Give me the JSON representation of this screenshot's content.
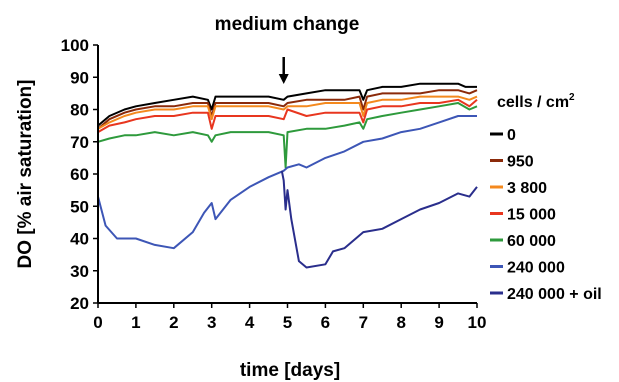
{
  "chart_data": {
    "type": "line",
    "annotation": "medium change",
    "annotation_x": 4.9,
    "xlabel": "time [days]",
    "ylabel": "DO [% air saturation]",
    "xlim": [
      0,
      10
    ],
    "ylim": [
      20,
      100
    ],
    "x_ticks": [
      0,
      1,
      2,
      3,
      4,
      5,
      6,
      7,
      8,
      9,
      10
    ],
    "y_ticks": [
      20,
      30,
      40,
      50,
      60,
      70,
      80,
      90,
      100
    ],
    "legend": {
      "title": "cells / cm",
      "title_sup": "2",
      "placement": "right"
    },
    "series": [
      {
        "name": "0",
        "color": "#000000",
        "points": [
          [
            0,
            75
          ],
          [
            0.3,
            78
          ],
          [
            0.7,
            80
          ],
          [
            1,
            81
          ],
          [
            1.5,
            82
          ],
          [
            2,
            83
          ],
          [
            2.5,
            84
          ],
          [
            2.9,
            83
          ],
          [
            3.0,
            80
          ],
          [
            3.1,
            84
          ],
          [
            3.5,
            84
          ],
          [
            4,
            84
          ],
          [
            4.5,
            84
          ],
          [
            4.9,
            83
          ],
          [
            5.0,
            84
          ],
          [
            5.5,
            85
          ],
          [
            6,
            86
          ],
          [
            6.5,
            86
          ],
          [
            6.9,
            86
          ],
          [
            7.0,
            83
          ],
          [
            7.1,
            86
          ],
          [
            7.5,
            87
          ],
          [
            8,
            87
          ],
          [
            8.5,
            88
          ],
          [
            9,
            88
          ],
          [
            9.5,
            88
          ],
          [
            9.7,
            87
          ],
          [
            10,
            87
          ]
        ]
      },
      {
        "name": "950",
        "color": "#8b2a0a",
        "points": [
          [
            0,
            74
          ],
          [
            0.3,
            77
          ],
          [
            0.7,
            79
          ],
          [
            1,
            80
          ],
          [
            1.5,
            81
          ],
          [
            2,
            81
          ],
          [
            2.5,
            82
          ],
          [
            2.9,
            82
          ],
          [
            3.0,
            78
          ],
          [
            3.1,
            82
          ],
          [
            3.5,
            82
          ],
          [
            4,
            82
          ],
          [
            4.5,
            82
          ],
          [
            4.9,
            81
          ],
          [
            5.0,
            82
          ],
          [
            5.5,
            83
          ],
          [
            6,
            83
          ],
          [
            6.5,
            83
          ],
          [
            6.9,
            84
          ],
          [
            7.0,
            80
          ],
          [
            7.1,
            84
          ],
          [
            7.5,
            85
          ],
          [
            8,
            85
          ],
          [
            8.5,
            85
          ],
          [
            9,
            86
          ],
          [
            9.5,
            86
          ],
          [
            9.8,
            85
          ],
          [
            10,
            86
          ]
        ]
      },
      {
        "name": "3 800",
        "color": "#f4891e",
        "points": [
          [
            0,
            74
          ],
          [
            0.3,
            76
          ],
          [
            0.7,
            78
          ],
          [
            1,
            79
          ],
          [
            1.5,
            80
          ],
          [
            2,
            80
          ],
          [
            2.5,
            81
          ],
          [
            2.9,
            81
          ],
          [
            3.0,
            77
          ],
          [
            3.1,
            81
          ],
          [
            3.5,
            81
          ],
          [
            4,
            81
          ],
          [
            4.5,
            81
          ],
          [
            4.9,
            80
          ],
          [
            5.0,
            81
          ],
          [
            5.5,
            81
          ],
          [
            6,
            82
          ],
          [
            6.5,
            82
          ],
          [
            6.9,
            82
          ],
          [
            7.0,
            78
          ],
          [
            7.1,
            82
          ],
          [
            7.5,
            83
          ],
          [
            8,
            83
          ],
          [
            8.5,
            84
          ],
          [
            9,
            84
          ],
          [
            9.5,
            84
          ],
          [
            9.8,
            83
          ],
          [
            10,
            84
          ]
        ]
      },
      {
        "name": "15 000",
        "color": "#e8361f",
        "points": [
          [
            0,
            73
          ],
          [
            0.3,
            75
          ],
          [
            0.7,
            76
          ],
          [
            1,
            77
          ],
          [
            1.5,
            78
          ],
          [
            2,
            78
          ],
          [
            2.5,
            79
          ],
          [
            2.9,
            79
          ],
          [
            3.0,
            74
          ],
          [
            3.1,
            78
          ],
          [
            3.5,
            78
          ],
          [
            4,
            78
          ],
          [
            4.5,
            78
          ],
          [
            4.9,
            77
          ],
          [
            5.0,
            80
          ],
          [
            5.5,
            78
          ],
          [
            6,
            79
          ],
          [
            6.5,
            79
          ],
          [
            6.9,
            79
          ],
          [
            7.0,
            76
          ],
          [
            7.1,
            80
          ],
          [
            7.5,
            81
          ],
          [
            8,
            81
          ],
          [
            8.5,
            82
          ],
          [
            9,
            82
          ],
          [
            9.5,
            83
          ],
          [
            9.8,
            81
          ],
          [
            10,
            83
          ]
        ]
      },
      {
        "name": "60 000",
        "color": "#2e9a3c",
        "points": [
          [
            0,
            70
          ],
          [
            0.3,
            71
          ],
          [
            0.7,
            72
          ],
          [
            1,
            72
          ],
          [
            1.5,
            73
          ],
          [
            2,
            72
          ],
          [
            2.5,
            73
          ],
          [
            2.9,
            72
          ],
          [
            3.0,
            70
          ],
          [
            3.1,
            72
          ],
          [
            3.5,
            73
          ],
          [
            4,
            73
          ],
          [
            4.5,
            73
          ],
          [
            4.9,
            72
          ],
          [
            4.95,
            62
          ],
          [
            5.0,
            73
          ],
          [
            5.5,
            74
          ],
          [
            6,
            74
          ],
          [
            6.5,
            75
          ],
          [
            6.9,
            76
          ],
          [
            7.0,
            74
          ],
          [
            7.1,
            77
          ],
          [
            7.5,
            78
          ],
          [
            8,
            79
          ],
          [
            8.5,
            80
          ],
          [
            9,
            81
          ],
          [
            9.5,
            82
          ],
          [
            9.8,
            80
          ],
          [
            10,
            81
          ]
        ]
      },
      {
        "name": "240 000",
        "color": "#3d56b6",
        "points": [
          [
            0,
            53
          ],
          [
            0.2,
            44
          ],
          [
            0.5,
            40
          ],
          [
            1,
            40
          ],
          [
            1.5,
            38
          ],
          [
            2,
            37
          ],
          [
            2.5,
            42
          ],
          [
            2.8,
            48
          ],
          [
            3.0,
            51
          ],
          [
            3.1,
            46
          ],
          [
            3.5,
            52
          ],
          [
            4,
            56
          ],
          [
            4.5,
            59
          ],
          [
            4.9,
            61
          ],
          [
            5.0,
            62
          ],
          [
            5.3,
            63
          ],
          [
            5.5,
            62
          ],
          [
            6,
            65
          ],
          [
            6.5,
            67
          ],
          [
            7,
            70
          ],
          [
            7.5,
            71
          ],
          [
            8,
            73
          ],
          [
            8.5,
            74
          ],
          [
            9,
            76
          ],
          [
            9.5,
            78
          ],
          [
            10,
            78
          ]
        ]
      },
      {
        "name": "240 000 + oil",
        "color": "#2a2e8c",
        "points": [
          [
            4.85,
            61
          ],
          [
            4.9,
            58
          ],
          [
            4.95,
            49
          ],
          [
            5.0,
            55
          ],
          [
            5.1,
            46
          ],
          [
            5.3,
            33
          ],
          [
            5.5,
            31
          ],
          [
            6,
            32
          ],
          [
            6.2,
            36
          ],
          [
            6.5,
            37
          ],
          [
            7,
            42
          ],
          [
            7.5,
            43
          ],
          [
            8,
            46
          ],
          [
            8.5,
            49
          ],
          [
            9,
            51
          ],
          [
            9.5,
            54
          ],
          [
            9.8,
            53
          ],
          [
            10,
            56
          ]
        ]
      }
    ]
  }
}
